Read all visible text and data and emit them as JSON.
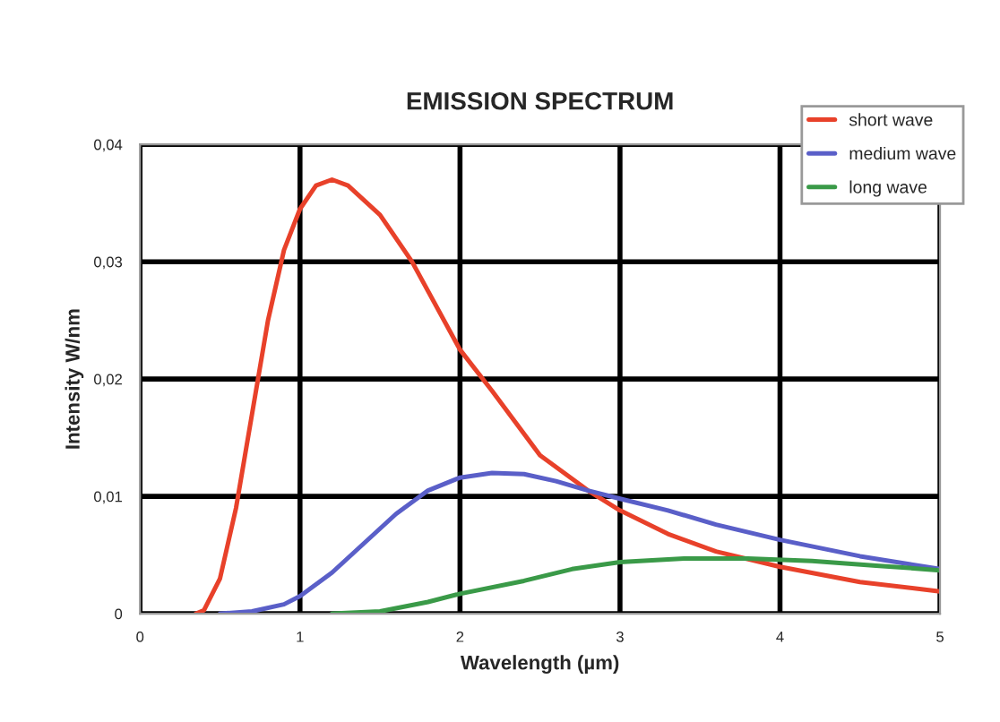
{
  "chart_data": {
    "type": "line",
    "title": "EMISSION SPECTRUM",
    "xlabel": "Wavelength (µm)",
    "ylabel": "Intensity W/nm",
    "xlim": [
      0,
      5
    ],
    "xticks": [
      0,
      1,
      2,
      3,
      4,
      5
    ],
    "ylim": [
      0,
      0.04
    ],
    "yticks": [
      {
        "value": 0,
        "label": "0"
      },
      {
        "value": 0.01,
        "label": "0,01"
      },
      {
        "value": 0.02,
        "label": "0,02"
      },
      {
        "value": 0.03,
        "label": "0,03"
      },
      {
        "value": 0.04,
        "label": "0,04"
      }
    ],
    "grid": true,
    "legend": "top right",
    "marker": "none",
    "line_style": "solid",
    "series": [
      {
        "name": "short wave",
        "color": "#e8412a",
        "x": [
          0.35,
          0.4,
          0.5,
          0.6,
          0.7,
          0.8,
          0.9,
          1.0,
          1.1,
          1.2,
          1.3,
          1.5,
          1.7,
          2.0,
          2.2,
          2.5,
          2.8,
          3.0,
          3.3,
          3.6,
          4.0,
          4.5,
          5.0
        ],
        "values": [
          0,
          0.0003,
          0.003,
          0.009,
          0.017,
          0.025,
          0.031,
          0.0345,
          0.0365,
          0.037,
          0.0365,
          0.034,
          0.03,
          0.0225,
          0.019,
          0.0135,
          0.0105,
          0.0088,
          0.0068,
          0.0053,
          0.004,
          0.0027,
          0.0019
        ]
      },
      {
        "name": "medium wave",
        "color": "#5a5fc8",
        "x": [
          0.5,
          0.7,
          0.9,
          1.0,
          1.2,
          1.4,
          1.6,
          1.8,
          2.0,
          2.2,
          2.4,
          2.6,
          2.8,
          3.0,
          3.3,
          3.6,
          4.0,
          4.5,
          5.0
        ],
        "values": [
          0,
          0.0002,
          0.0008,
          0.0015,
          0.0035,
          0.006,
          0.0085,
          0.0105,
          0.0116,
          0.012,
          0.0119,
          0.0113,
          0.0105,
          0.0098,
          0.0088,
          0.0076,
          0.0063,
          0.0049,
          0.0038
        ]
      },
      {
        "name": "long wave",
        "color": "#3a9a48",
        "x": [
          1.2,
          1.5,
          1.8,
          2.0,
          2.4,
          2.7,
          3.0,
          3.4,
          3.8,
          4.2,
          4.6,
          5.0
        ],
        "values": [
          0,
          0.0002,
          0.001,
          0.0017,
          0.0028,
          0.0038,
          0.0044,
          0.0047,
          0.0047,
          0.0045,
          0.0041,
          0.0037
        ]
      }
    ]
  }
}
